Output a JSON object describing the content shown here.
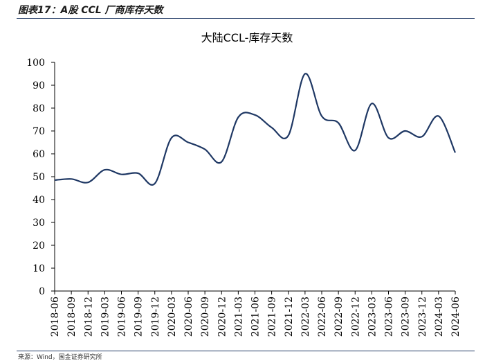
{
  "header": {
    "title": "图表17：A股 CCL 厂商库存天数"
  },
  "footer": {
    "source": "来源：Wind，国金证券研究所"
  },
  "colors": {
    "series_line": "#1f3864",
    "rule": "#1f3864",
    "axis": "#000000"
  },
  "chart_data": {
    "type": "line",
    "title": "大陆CCL-库存天数",
    "xlabel": "",
    "ylabel": "",
    "ylim": [
      0,
      100
    ],
    "yticks": [
      0,
      10,
      20,
      30,
      40,
      50,
      60,
      70,
      80,
      90,
      100
    ],
    "grid": false,
    "legend": "none",
    "categories": [
      "2018-06",
      "2018-09",
      "2018-12",
      "2019-03",
      "2019-06",
      "2019-09",
      "2019-12",
      "2020-03",
      "2020-06",
      "2020-09",
      "2020-12",
      "2021-03",
      "2021-06",
      "2021-09",
      "2021-12",
      "2022-03",
      "2022-06",
      "2022-09",
      "2022-12",
      "2023-03",
      "2023-06",
      "2023-09",
      "2023-12",
      "2024-03",
      "2024-06"
    ],
    "series": [
      {
        "values": [
          48.5,
          49,
          47.5,
          53,
          51,
          51.5,
          47,
          67,
          65,
          62,
          56.5,
          76,
          77,
          71.5,
          68,
          95,
          76.5,
          73.5,
          61.5,
          82,
          67,
          70,
          67.5,
          76.5,
          60.5
        ]
      }
    ]
  }
}
